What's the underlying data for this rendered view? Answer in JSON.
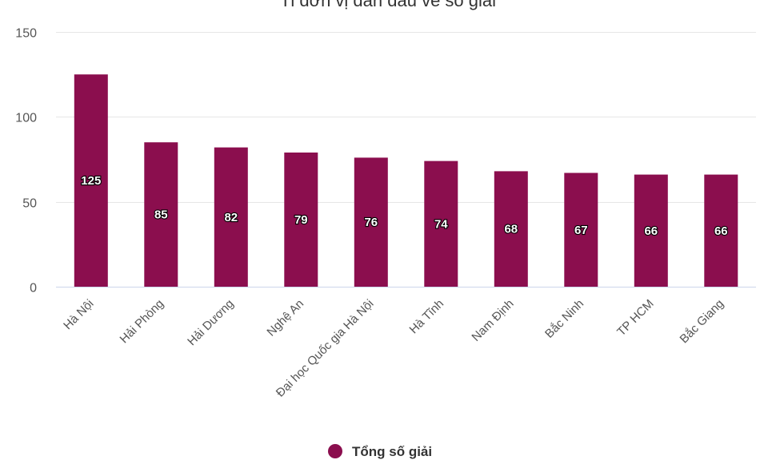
{
  "chart_data": {
    "type": "bar",
    "title": "Tỉ đơn vị dẫn đầu về số giải",
    "categories": [
      "Hà Nội",
      "Hải Phòng",
      "Hải Dương",
      "Nghệ An",
      "Đại học Quốc gia Hà Nội",
      "Hà Tĩnh",
      "Nam Định",
      "Bắc Ninh",
      "TP HCM",
      "Bắc Giang"
    ],
    "series": [
      {
        "name": "Tổng số giải",
        "values": [
          125,
          85,
          82,
          79,
          76,
          74,
          68,
          67,
          66,
          66
        ],
        "color": "#8b0e4e"
      }
    ],
    "ylim": [
      0,
      150
    ],
    "yticks": [
      0,
      50,
      100,
      150
    ],
    "grid": true,
    "legend_position": "bottom-center",
    "data_labels": true
  }
}
